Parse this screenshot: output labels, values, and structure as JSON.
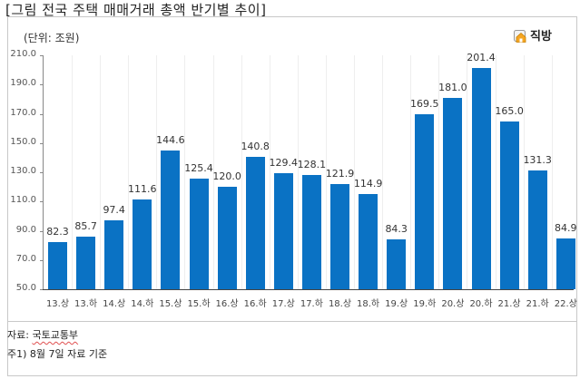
{
  "title_prefix": "[그림 전국 주택 ",
  "title_squig1": "매매거래",
  "title_mid": " 총액 ",
  "title_squig2": "반기별",
  "title_suffix": " 추이]",
  "unit_label": "(단위: 조원)",
  "logo_text": "직방",
  "source_prefix": "자료: ",
  "source_name": "국토교통부",
  "note": "주1) 8월 7일 자료 기준",
  "colors": {
    "bar": "#0a72c4",
    "axis": "#888888"
  },
  "chart_data": {
    "type": "bar",
    "title": "전국 주택 매매거래 총액 반기별 추이",
    "ylabel": "단위: 조원",
    "xlabel": "",
    "ylim": [
      50,
      210
    ],
    "yticks": [
      50.0,
      70.0,
      90.0,
      110.0,
      130.0,
      150.0,
      170.0,
      190.0,
      210.0
    ],
    "ytick_labels": [
      "50.0",
      "70.0",
      "90.0",
      "110.0",
      "130.0",
      "150.0",
      "170.0",
      "190.0",
      "210.0"
    ],
    "grid": false,
    "legend": null,
    "categories": [
      "13.상",
      "13.하",
      "14.상",
      "14.하",
      "15.상",
      "15.하",
      "16.상",
      "16.하",
      "17.상",
      "17.하",
      "18.상",
      "18.하",
      "19.상",
      "19.하",
      "20.상",
      "20.하",
      "21.상",
      "21.하",
      "22.상"
    ],
    "values": [
      82.3,
      85.7,
      97.4,
      111.6,
      144.6,
      125.4,
      120.0,
      140.8,
      129.4,
      128.1,
      121.9,
      114.9,
      84.3,
      169.5,
      181.0,
      201.4,
      165.0,
      131.3,
      84.9
    ],
    "value_labels": [
      "82.3",
      "85.7",
      "97.4",
      "111.6",
      "144.6",
      "125.4",
      "120.0",
      "140.8",
      "129.4",
      "128.1",
      "121.9",
      "114.9",
      "84.3",
      "169.5",
      "181.0",
      "201.4",
      "165.0",
      "131.3",
      "84.9"
    ],
    "source": "국토교통부"
  }
}
